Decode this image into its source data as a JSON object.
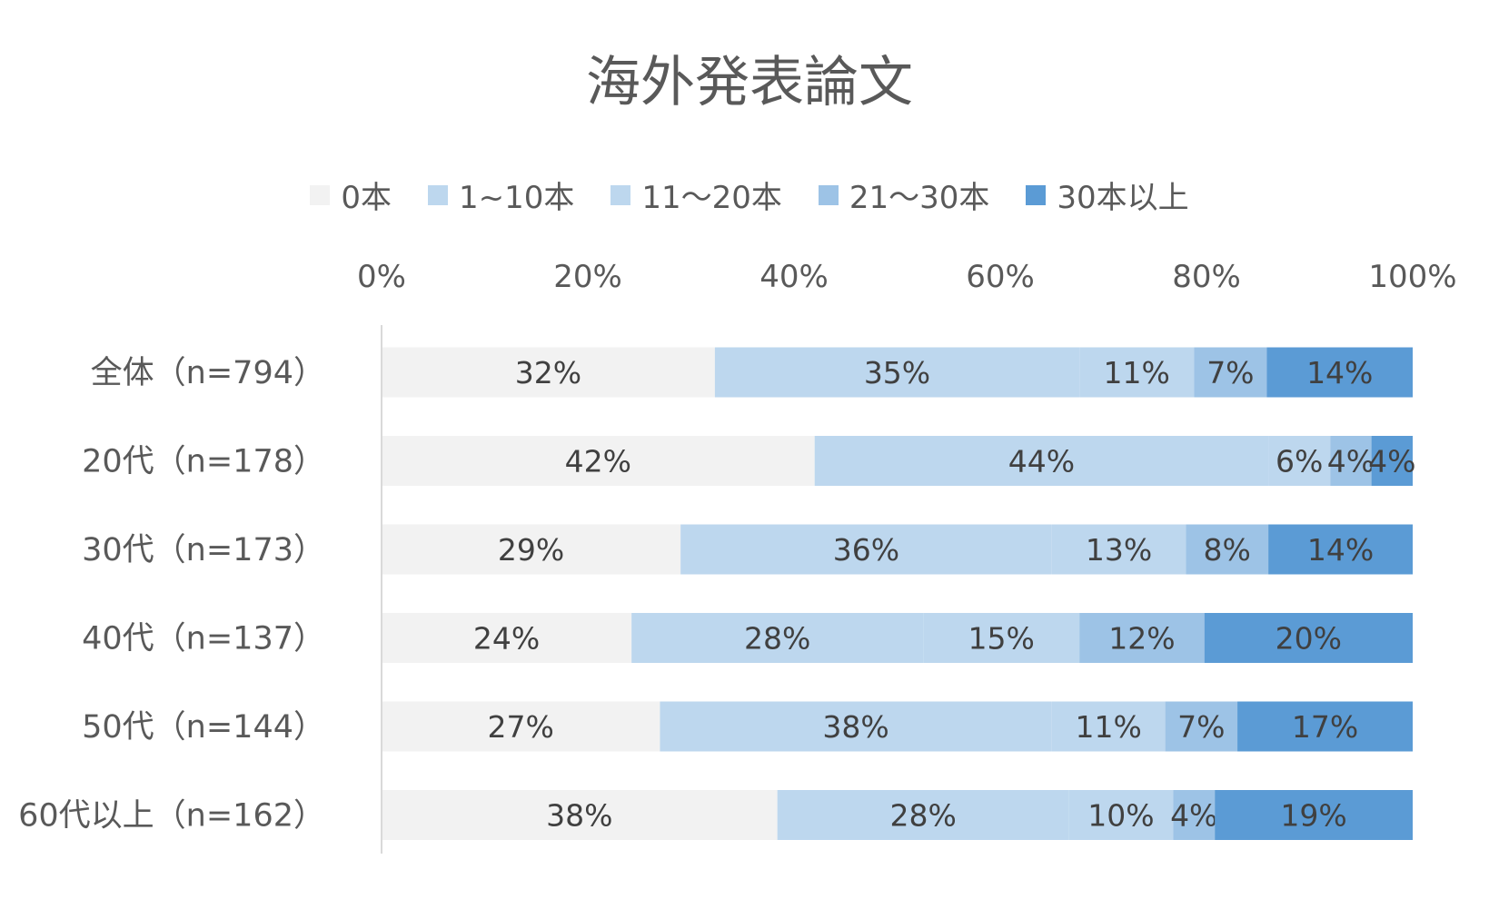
{
  "chart_data": {
    "type": "bar",
    "orientation": "horizontal",
    "stacked": "percent",
    "title": "海外発表論文",
    "xlabel": "",
    "ylabel": "",
    "xlim": [
      0,
      100
    ],
    "x_ticks": [
      "0%",
      "20%",
      "40%",
      "60%",
      "80%",
      "100%"
    ],
    "grid": false,
    "legend_position": "top",
    "categories": [
      "全体（n=794）",
      "20代（n=178）",
      "30代（n=173）",
      "40代（n=137）",
      "50代（n=144）",
      "60代以上（n=162）"
    ],
    "series": [
      {
        "name": "0本",
        "color": "#f2f2f2",
        "values": [
          32,
          42,
          29,
          24,
          27,
          38
        ]
      },
      {
        "name": "1~10本",
        "color": "#bdd7ee",
        "values": [
          35,
          44,
          36,
          28,
          38,
          28
        ]
      },
      {
        "name": "11～20本",
        "color": "#bdd7ee",
        "values": [
          11,
          6,
          13,
          15,
          11,
          10
        ]
      },
      {
        "name": "21～30本",
        "color": "#9dc3e6",
        "values": [
          7,
          4,
          8,
          12,
          7,
          4
        ]
      },
      {
        "name": "30本以上",
        "color": "#5b9bd5",
        "values": [
          14,
          4,
          14,
          20,
          17,
          19
        ]
      }
    ],
    "data_labels": [
      [
        "32%",
        "35%",
        "11%",
        "7%",
        "14%"
      ],
      [
        "42%",
        "44%",
        "6%",
        "4%",
        "4%"
      ],
      [
        "29%",
        "36%",
        "13%",
        "8%",
        "14%"
      ],
      [
        "24%",
        "28%",
        "15%",
        "12%",
        "20%"
      ],
      [
        "27%",
        "38%",
        "11%",
        "7%",
        "17%"
      ],
      [
        "38%",
        "28%",
        "10%",
        "4%",
        "19%"
      ]
    ]
  }
}
